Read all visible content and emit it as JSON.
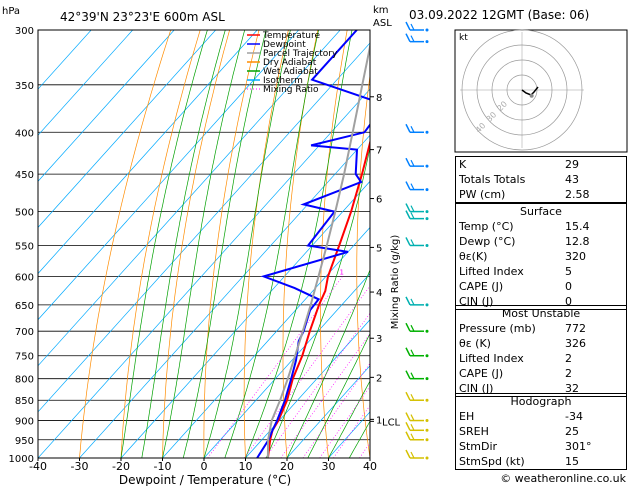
{
  "header": {
    "pressure_unit": "hPa",
    "location": "42°39'N  23°23'E  600m  ASL",
    "height_unit": "km",
    "height_unit2": "ASL",
    "datetime": "03.09.2022  12GMT  (Base: 06)"
  },
  "footer": {
    "copyright": "© weatheronline.co.uk"
  },
  "axes": {
    "xlabel": "Dewpoint / Temperature (°C)",
    "ylabel_right": "Mixing Ratio (g/kg)",
    "hodograph_unit": "kt"
  },
  "legend": [
    {
      "label": "Temperature",
      "color": "#ff0000"
    },
    {
      "label": "Dewpoint",
      "color": "#0000ff"
    },
    {
      "label": "Parcel Trajectory",
      "color": "#a0a0a0"
    },
    {
      "label": "Dry Adiabat",
      "color": "#ff8c00"
    },
    {
      "label": "Wet Adiabat",
      "color": "#00a000"
    },
    {
      "label": "Isotherm",
      "color": "#00aaff"
    },
    {
      "label": "Mixing Ratio",
      "color": "#ff00ff"
    }
  ],
  "chart_data": {
    "type": "line",
    "title": "",
    "xlabel": "Dewpoint / Temperature (°C)",
    "ylabel": "hPa",
    "xlim": [
      -40,
      40
    ],
    "ylim": [
      1000,
      300
    ],
    "y_scale": "log",
    "x_ticks": [
      -40,
      -30,
      -20,
      -10,
      0,
      10,
      20,
      30,
      40
    ],
    "pressure_ticks": [
      300,
      350,
      400,
      450,
      500,
      550,
      600,
      650,
      700,
      750,
      800,
      850,
      900,
      950,
      1000
    ],
    "km_labels": [
      {
        "label": "8",
        "p": 362
      },
      {
        "label": "7",
        "p": 420
      },
      {
        "label": "6",
        "p": 482
      },
      {
        "label": "5",
        "p": 553
      },
      {
        "label": "4",
        "p": 627
      },
      {
        "label": "3",
        "p": 714
      },
      {
        "label": "2",
        "p": 797
      },
      {
        "label": "1",
        "p": 897
      },
      {
        "label": "LCL",
        "p": 902
      }
    ],
    "mixing_ratio_labels": [
      {
        "label": "1",
        "x": -6.0
      },
      {
        "label": "2",
        "x": 2.3
      },
      {
        "label": "3",
        "x": 7.1
      },
      {
        "label": "4",
        "x": 10.6
      },
      {
        "label": "6",
        "x": 15.6
      },
      {
        "label": "8",
        "x": 19.4
      },
      {
        "label": "10",
        "x": 22.5
      },
      {
        "label": "15",
        "x": 28.4
      },
      {
        "label": "20",
        "x": 32.8
      },
      {
        "label": "25",
        "x": 36.3
      }
    ],
    "series": [
      {
        "name": "Temperature",
        "color": "#ff0000",
        "points": [
          [
            1000,
            15.4
          ],
          [
            950,
            12.0
          ],
          [
            925,
            10.5
          ],
          [
            900,
            9.8
          ],
          [
            850,
            7.5
          ],
          [
            800,
            4.2
          ],
          [
            750,
            1.5
          ],
          [
            700,
            -2.0
          ],
          [
            650,
            -5.5
          ],
          [
            625,
            -7.0
          ],
          [
            600,
            -9.5
          ],
          [
            550,
            -13.5
          ],
          [
            500,
            -18.0
          ],
          [
            450,
            -23.5
          ],
          [
            400,
            -30.0
          ],
          [
            350,
            -37.5
          ],
          [
            300,
            -45.5
          ]
        ]
      },
      {
        "name": "Dewpoint",
        "color": "#0000ff",
        "points": [
          [
            1000,
            12.8
          ],
          [
            950,
            11.6
          ],
          [
            925,
            10.5
          ],
          [
            900,
            9.5
          ],
          [
            850,
            7.0
          ],
          [
            800,
            3.8
          ],
          [
            760,
            1.0
          ],
          [
            720,
            -2.5
          ],
          [
            700,
            -3.5
          ],
          [
            660,
            -6.5
          ],
          [
            640,
            -6.8
          ],
          [
            620,
            -15.0
          ],
          [
            600,
            -25.0
          ],
          [
            560,
            -10.0
          ],
          [
            550,
            -21.0
          ],
          [
            500,
            -22.0
          ],
          [
            490,
            -31.0
          ],
          [
            460,
            -22.0
          ],
          [
            450,
            -25.0
          ],
          [
            420,
            -30.0
          ],
          [
            415,
            -42.0
          ],
          [
            400,
            -32.0
          ],
          [
            370,
            -33.0
          ],
          [
            345,
            -56.0
          ],
          [
            300,
            -56.0
          ]
        ]
      },
      {
        "name": "Parcel Trajectory",
        "color": "#a0a0a0",
        "points": [
          [
            1000,
            15.4
          ],
          [
            950,
            11.5
          ],
          [
            900,
            8.2
          ],
          [
            850,
            5.8
          ],
          [
            800,
            3.0
          ],
          [
            750,
            -0.2
          ],
          [
            700,
            -3.7
          ],
          [
            650,
            -7.5
          ],
          [
            600,
            -11.8
          ],
          [
            550,
            -16.5
          ],
          [
            500,
            -21.8
          ],
          [
            450,
            -27.8
          ],
          [
            400,
            -34.8
          ],
          [
            350,
            -42.8
          ],
          [
            300,
            -52.0
          ]
        ]
      }
    ],
    "wind_barbs_pressure": [
      300,
      310,
      400,
      440,
      470,
      500,
      510,
      550,
      650,
      700,
      750,
      800,
      850,
      900,
      925,
      950,
      1000
    ],
    "hodograph": {
      "rings_kt": [
        10,
        20,
        30,
        40
      ],
      "ring_labels": [
        "20",
        "30",
        "40"
      ],
      "storm_motion_dir": 301,
      "storm_motion_kt": 15
    }
  },
  "indices": {
    "rows": [
      {
        "label": "K",
        "value": "29"
      },
      {
        "label": "Totals Totals",
        "value": "43"
      },
      {
        "label": "PW (cm)",
        "value": "2.58"
      }
    ]
  },
  "surface": {
    "title": "Surface",
    "rows": [
      {
        "label": "Temp (°C)",
        "value": "15.4"
      },
      {
        "label": "Dewp (°C)",
        "value": "12.8"
      },
      {
        "label": "θε(K)",
        "value": "320"
      },
      {
        "label": "Lifted Index",
        "value": "5"
      },
      {
        "label": "CAPE (J)",
        "value": "0"
      },
      {
        "label": "CIN (J)",
        "value": "0"
      }
    ]
  },
  "most_unstable": {
    "title": "Most Unstable",
    "rows": [
      {
        "label": "Pressure (mb)",
        "value": "772"
      },
      {
        "label": "θε (K)",
        "value": "326"
      },
      {
        "label": "Lifted Index",
        "value": "2"
      },
      {
        "label": "CAPE (J)",
        "value": "2"
      },
      {
        "label": "CIN (J)",
        "value": "32"
      }
    ]
  },
  "hodograph_table": {
    "title": "Hodograph",
    "rows": [
      {
        "label": "EH",
        "value": "-34"
      },
      {
        "label": "SREH",
        "value": "25"
      },
      {
        "label": "StmDir",
        "value": "301°"
      },
      {
        "label": "StmSpd (kt)",
        "value": "15"
      }
    ]
  }
}
